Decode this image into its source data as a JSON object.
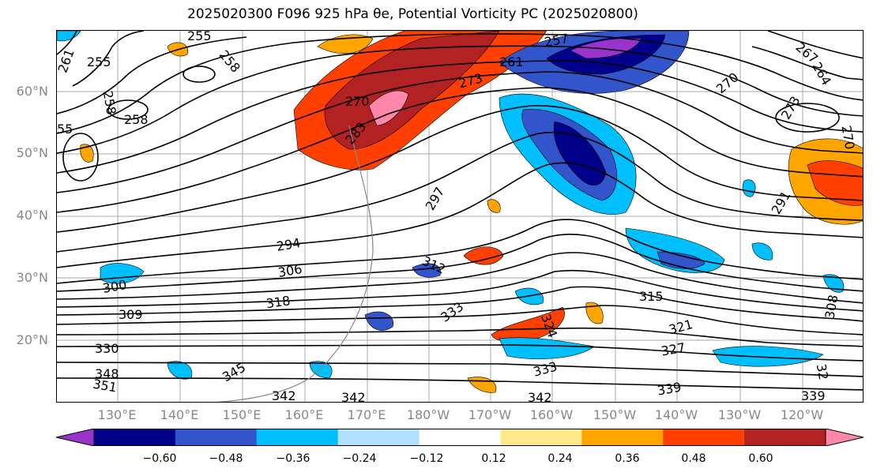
{
  "title": "2025020300 F096 925 hPa θe, Potential Vorticity PC (2025020800)",
  "lat_labels": [
    "60°N",
    "50°N",
    "40°N",
    "30°N",
    "20°N"
  ],
  "lon_labels": [
    "130°E",
    "140°E",
    "150°E",
    "160°E",
    "170°E",
    "180°W",
    "170°W",
    "160°W",
    "150°W",
    "140°W",
    "130°W",
    "120°W"
  ],
  "colorbar": {
    "ticks": [
      "−0.60",
      "−0.48",
      "−0.36",
      "−0.24",
      "−0.12",
      "0.12",
      "0.24",
      "0.36",
      "0.48",
      "0.60"
    ],
    "colors": [
      "#9933cc",
      "#00008b",
      "#3355cc",
      "#00bfff",
      "#b0e2ff",
      "#ffffff",
      "#ffe88a",
      "#ffa500",
      "#ff4000",
      "#b22222",
      "#ff88aa"
    ]
  },
  "contour_labels": [
    "255",
    "261",
    "258",
    "255",
    "258",
    "258",
    "55",
    "270",
    "283",
    "273",
    "261",
    "257",
    "267",
    "270",
    "264",
    "273",
    "270",
    "297",
    "291",
    "294",
    "306",
    "312",
    "300",
    "309",
    "318",
    "333",
    "315",
    "321",
    "324",
    "327",
    "330",
    "348",
    "351",
    "345",
    "342",
    "333",
    "342",
    "339",
    "339",
    "342",
    "32",
    "308"
  ]
}
